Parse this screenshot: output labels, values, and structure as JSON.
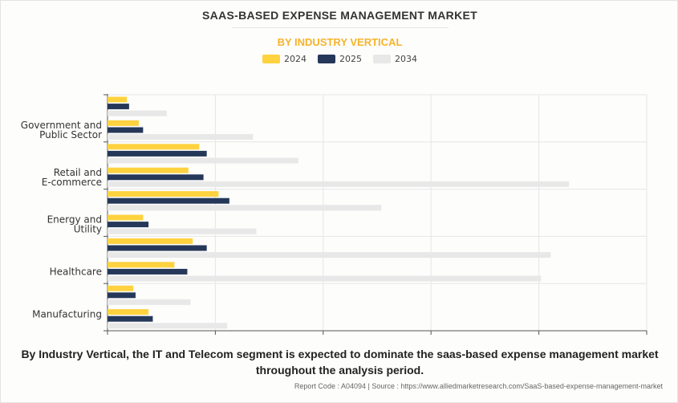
{
  "colors": {
    "2024": "#ffd23f",
    "2025": "#263859",
    "2034": "#e8e8e8"
  },
  "chart_data": {
    "type": "bar",
    "orientation": "horizontal",
    "title": "SAAS-BASED EXPENSE MANAGEMENT MARKET",
    "subtitle": "BY INDUSTRY VERTICAL",
    "legend_position": "top",
    "grid": true,
    "tick_labels_shown": false,
    "xlim": [
      0,
      5
    ],
    "categories": [
      "",
      "Government and Public Sector",
      "",
      "Retail and E-commerce",
      "",
      "Energy and Utility",
      "",
      "Healthcare",
      "",
      "Manufacturing"
    ],
    "series": [
      {
        "name": "2024",
        "values": [
          0.18,
          0.29,
          0.85,
          0.75,
          1.03,
          0.33,
          0.79,
          0.62,
          0.24,
          0.38
        ]
      },
      {
        "name": "2025",
        "values": [
          0.2,
          0.33,
          0.92,
          0.89,
          1.13,
          0.38,
          0.92,
          0.74,
          0.26,
          0.42
        ]
      },
      {
        "name": "2034",
        "values": [
          0.55,
          1.35,
          1.77,
          4.28,
          2.54,
          1.38,
          4.11,
          4.02,
          0.77,
          1.11
        ]
      }
    ]
  },
  "caption": "By Industry Vertical, the IT and Telecom segment is expected to dominate the saas-based expense management market throughout the analysis period.",
  "source": "Report Code : A04094  |  Source : https://www.alliedmarketresearch.com/SaaS-based-expense-management-market"
}
